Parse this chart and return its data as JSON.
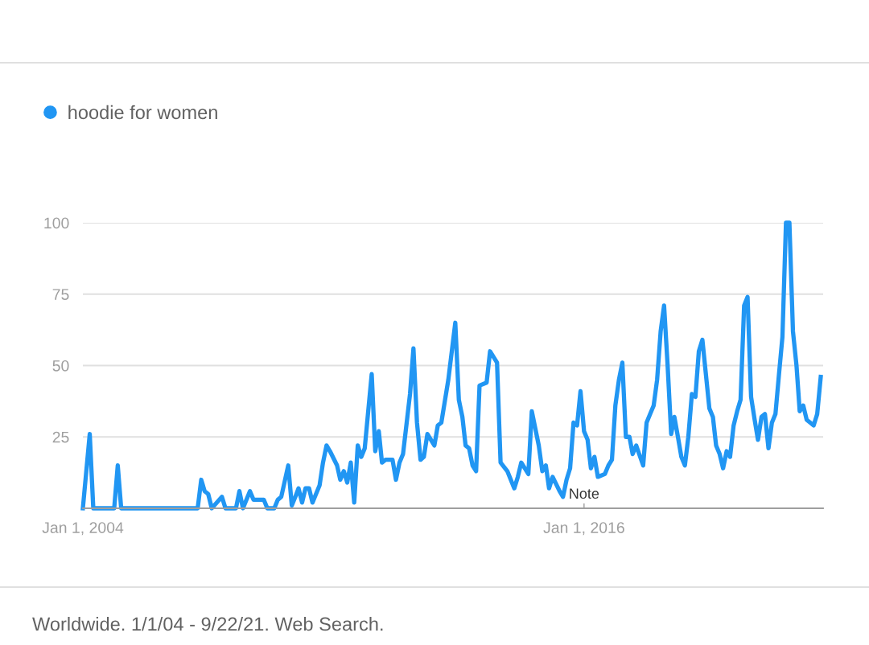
{
  "chart_data": {
    "type": "line",
    "x": [
      "2004-01",
      "2004-03",
      "2004-04",
      "2004-10",
      "2004-11",
      "2004-12",
      "2006-10",
      "2006-11",
      "2006-12",
      "2007-01",
      "2007-02",
      "2007-05",
      "2007-06",
      "2007-09",
      "2007-10",
      "2007-11",
      "2008-01",
      "2008-02",
      "2008-05",
      "2008-06",
      "2008-08",
      "2008-09",
      "2008-10",
      "2008-12",
      "2009-01",
      "2009-02",
      "2009-03",
      "2009-04",
      "2009-05",
      "2009-06",
      "2009-07",
      "2009-09",
      "2009-10",
      "2009-11",
      "2009-12",
      "2010-02",
      "2010-03",
      "2010-04",
      "2010-05",
      "2010-06",
      "2010-07",
      "2010-08",
      "2010-09",
      "2010-10",
      "2010-12",
      "2011-01",
      "2011-02",
      "2011-03",
      "2011-04",
      "2011-06",
      "2011-07",
      "2011-08",
      "2011-09",
      "2011-11",
      "2011-12",
      "2012-01",
      "2012-02",
      "2012-03",
      "2012-04",
      "2012-06",
      "2012-07",
      "2012-08",
      "2012-10",
      "2012-12",
      "2013-01",
      "2013-02",
      "2013-03",
      "2013-04",
      "2013-05",
      "2013-06",
      "2013-07",
      "2013-09",
      "2013-10",
      "2013-12",
      "2014-01",
      "2014-03",
      "2014-05",
      "2014-06",
      "2014-07",
      "2014-09",
      "2014-10",
      "2014-12",
      "2015-01",
      "2015-02",
      "2015-03",
      "2015-04",
      "2015-06",
      "2015-07",
      "2015-08",
      "2015-09",
      "2015-10",
      "2015-11",
      "2015-12",
      "2016-01",
      "2016-02",
      "2016-03",
      "2016-04",
      "2016-05",
      "2016-07",
      "2016-08",
      "2016-09",
      "2016-10",
      "2016-11",
      "2016-12",
      "2017-01",
      "2017-02",
      "2017-03",
      "2017-04",
      "2017-06",
      "2017-07",
      "2017-08",
      "2017-09",
      "2017-10",
      "2017-11",
      "2017-12",
      "2018-01",
      "2018-02",
      "2018-03",
      "2018-04",
      "2018-05",
      "2018-06",
      "2018-07",
      "2018-08",
      "2018-09",
      "2018-10",
      "2018-11",
      "2019-01",
      "2019-02",
      "2019-03",
      "2019-04",
      "2019-05",
      "2019-06",
      "2019-07",
      "2019-08",
      "2019-09",
      "2019-10",
      "2019-11",
      "2019-12",
      "2020-01",
      "2020-02",
      "2020-03",
      "2020-04",
      "2020-05",
      "2020-06",
      "2020-07",
      "2020-08",
      "2020-09",
      "2020-10",
      "2020-11",
      "2020-12",
      "2021-01",
      "2021-02",
      "2021-03",
      "2021-04",
      "2021-05",
      "2021-06",
      "2021-07",
      "2021-08",
      "2021-09"
    ],
    "series": [
      {
        "name": "hoodie for women",
        "color": "#2196f3",
        "values": [
          0,
          26,
          0,
          0,
          15,
          0,
          0,
          10,
          6,
          5,
          0,
          4,
          0,
          0,
          6,
          0,
          6,
          3,
          3,
          0,
          0,
          3,
          4,
          15,
          1,
          4,
          7,
          2,
          7,
          7,
          2,
          8,
          16,
          22,
          20,
          15,
          10,
          13,
          9,
          16,
          2,
          22,
          18,
          21,
          47,
          20,
          27,
          16,
          17,
          17,
          10,
          16,
          19,
          40,
          56,
          30,
          17,
          18,
          26,
          22,
          29,
          30,
          45,
          65,
          38,
          32,
          22,
          21,
          15,
          13,
          43,
          44,
          55,
          51,
          16,
          13,
          7,
          11,
          16,
          12,
          34,
          22,
          13,
          15,
          7,
          11,
          6,
          4,
          10,
          14,
          30,
          29,
          41,
          27,
          24,
          14,
          18,
          11,
          12,
          15,
          17,
          36,
          45,
          51,
          25,
          25,
          19,
          22,
          15,
          30,
          33,
          36,
          45,
          62,
          71,
          50,
          26,
          32,
          25,
          18,
          15,
          25,
          40,
          39,
          55,
          59,
          35,
          32,
          22,
          19,
          14,
          20,
          18,
          29,
          34,
          38,
          71,
          74,
          39,
          31,
          24,
          32,
          33,
          21,
          30,
          33,
          47,
          60,
          100,
          100,
          62,
          50,
          34,
          36,
          31,
          30,
          29,
          33,
          46
        ]
      }
    ],
    "xlim": [
      "2004-01-01",
      "2021-09-22"
    ],
    "xticks": [
      {
        "value": "2004-01-01",
        "label": "Jan 1, 2004"
      },
      {
        "value": "2016-01-01",
        "label": "Jan 1, 2016"
      }
    ],
    "ylim": [
      0,
      100
    ],
    "yticks": [
      25,
      50,
      75,
      100
    ],
    "grid": "y",
    "legend": "top left",
    "marker": "none",
    "line_style": "solid",
    "annotations": [
      "Note",
      "Worldwide. 1/1/04 - 9/22/21. Web Search."
    ]
  }
}
